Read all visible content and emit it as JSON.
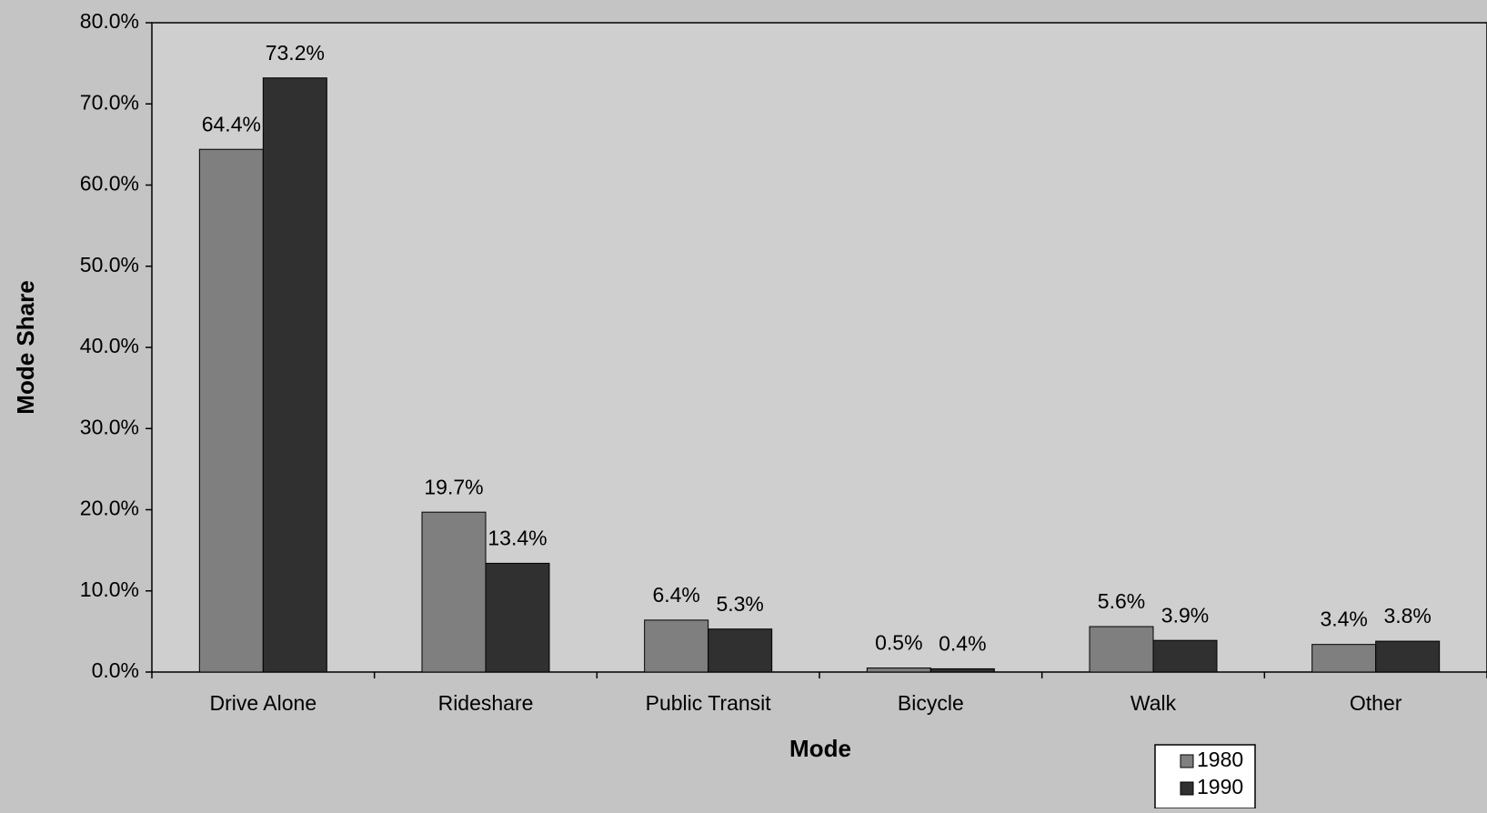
{
  "chart_data": {
    "type": "bar",
    "x_label": "Mode",
    "y_label": "Mode Share",
    "categories": [
      "Drive Alone",
      "Rideshare",
      "Public Transit",
      "Bicycle",
      "Walk",
      "Other"
    ],
    "series": [
      {
        "name": "1980",
        "color": "#7f7f7f",
        "values": [
          64.4,
          19.7,
          6.4,
          0.5,
          5.6,
          3.4
        ],
        "value_labels": [
          "64.4%",
          "19.7%",
          "6.4%",
          "0.5%",
          "5.6%",
          "3.4%"
        ]
      },
      {
        "name": "1990",
        "color": "#303030",
        "values": [
          73.2,
          13.4,
          5.3,
          0.4,
          3.9,
          3.8
        ],
        "value_labels": [
          "73.2%",
          "13.4%",
          "5.3%",
          "0.4%",
          "3.9%",
          "3.8%"
        ]
      }
    ],
    "ylim": [
      0,
      80
    ],
    "yticks": [
      {
        "value": 0,
        "label": "0.0%"
      },
      {
        "value": 10,
        "label": "10.0%"
      },
      {
        "value": 20,
        "label": "20.0%"
      },
      {
        "value": 30,
        "label": "30.0%"
      },
      {
        "value": 40,
        "label": "40.0%"
      },
      {
        "value": 50,
        "label": "50.0%"
      },
      {
        "value": 60,
        "label": "60.0%"
      },
      {
        "value": 70,
        "label": "70.0%"
      },
      {
        "value": 80,
        "label": "80.0%"
      }
    ],
    "grid": false,
    "legend": "bottom-right"
  }
}
